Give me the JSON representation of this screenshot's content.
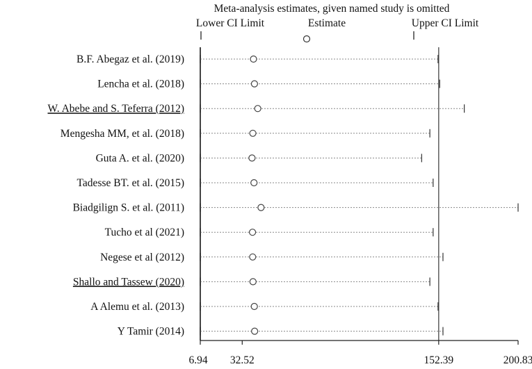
{
  "chart_data": {
    "type": "forest",
    "title": "Meta-analysis estimates, given named study is omitted",
    "legend": {
      "lower_label": "Lower CI Limit",
      "estimate_label": "Estimate",
      "upper_label": "Upper CI Limit"
    },
    "x_ticks": [
      {
        "value": 6.94,
        "label": "6.94"
      },
      {
        "value": 32.52,
        "label": "32.52"
      },
      {
        "value": 152.39,
        "label": "152.39"
      },
      {
        "value": 200.83,
        "label": "200.83"
      }
    ],
    "xlim": [
      6.94,
      200.83
    ],
    "reference_lines": [
      6.94,
      152.39
    ],
    "studies": [
      {
        "label": "B.F. Abegaz et al. (2019)",
        "lower": 6.94,
        "estimate": 39.4,
        "upper": 152.0,
        "underline": false
      },
      {
        "label": "Lencha et al. (2018)",
        "lower": 6.94,
        "estimate": 40.0,
        "upper": 153.0,
        "underline": false
      },
      {
        "label": "W. Abebe and S. Teferra (2012)",
        "lower": 6.94,
        "estimate": 42.0,
        "upper": 168.0,
        "underline": true
      },
      {
        "label": "Mengesha MM, et al. (2018)",
        "lower": 6.94,
        "estimate": 39.0,
        "upper": 147.0,
        "underline": false
      },
      {
        "label": "Guta A. et al. (2020)",
        "lower": 6.94,
        "estimate": 38.5,
        "upper": 142.0,
        "underline": false
      },
      {
        "label": "Tadesse BT. et al. (2015)",
        "lower": 6.94,
        "estimate": 39.7,
        "upper": 149.0,
        "underline": false
      },
      {
        "label": "Biadgilign S. et al. (2011)",
        "lower": 6.94,
        "estimate": 44.0,
        "upper": 200.83,
        "underline": false
      },
      {
        "label": "Tucho et al (2021)",
        "lower": 6.94,
        "estimate": 38.8,
        "upper": 149.0,
        "underline": false
      },
      {
        "label": "Negese et al (2012)",
        "lower": 6.94,
        "estimate": 38.9,
        "upper": 155.0,
        "underline": false
      },
      {
        "label": "Shallo and Tassew (2020)",
        "lower": 6.94,
        "estimate": 39.1,
        "upper": 147.0,
        "underline": true
      },
      {
        "label": "A Alemu et al. (2013)",
        "lower": 6.94,
        "estimate": 39.9,
        "upper": 152.0,
        "underline": false
      },
      {
        "label": "Y Tamir (2014)",
        "lower": 6.94,
        "estimate": 40.1,
        "upper": 155.0,
        "underline": false
      }
    ]
  }
}
